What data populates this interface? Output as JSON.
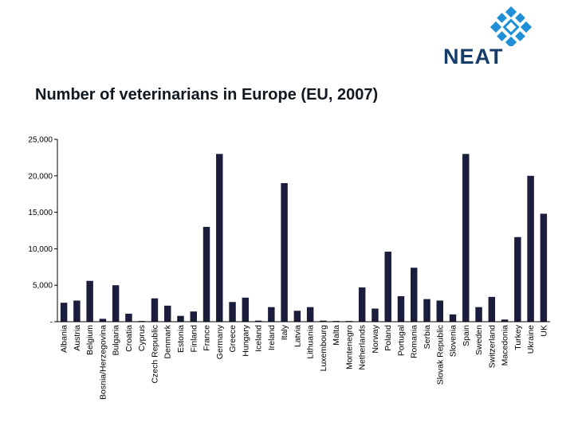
{
  "title": "Number of veterinarians in Europe (EU, 2007)",
  "logo": {
    "text": "NEAT",
    "color_dark": "#153d68",
    "color_light": "#1f8fd8"
  },
  "colors": {
    "bar": "#1b1d3c",
    "axis": "#000000"
  },
  "chart_data": {
    "type": "bar",
    "title": "Number of veterinarians in Europe (EU, 2007)",
    "xlabel": "",
    "ylabel": "",
    "ylim": [
      0,
      25000
    ],
    "yticks": [
      0,
      5000,
      10000,
      15000,
      20000,
      25000
    ],
    "ytick_labels": [
      "-",
      "5,000",
      "10,000",
      "15,000",
      "20,000",
      "25,000"
    ],
    "grid": false,
    "categories": [
      "Albania",
      "Austria",
      "Belgium",
      "Bosnia/Herzegovina",
      "Bulgaria",
      "Croatia",
      "Cyprus",
      "Czech Republic",
      "Denmark",
      "Estonia",
      "Finland",
      "France",
      "Germany",
      "Greece",
      "Hungary",
      "Iceland",
      "Ireland",
      "Italy",
      "Latvia",
      "Lithuania",
      "Luxembourg",
      "Malta",
      "Montenegro",
      "Netherlands",
      "Norway",
      "Poland",
      "Portugal",
      "Romania",
      "Serbia",
      "Slovak Republic",
      "Slovenia",
      "Spain",
      "Sweden",
      "Switzerland",
      "Macedonia",
      "Turkey",
      "Ukraine",
      "UK"
    ],
    "values": [
      2600,
      2900,
      5600,
      400,
      5000,
      1100,
      100,
      3200,
      2200,
      800,
      1400,
      13000,
      23000,
      2700,
      3300,
      150,
      2000,
      19000,
      1500,
      2000,
      150,
      100,
      100,
      4700,
      1800,
      9600,
      3500,
      7400,
      3100,
      2900,
      1000,
      23000,
      2000,
      3400,
      300,
      11600,
      20000,
      14800
    ]
  }
}
